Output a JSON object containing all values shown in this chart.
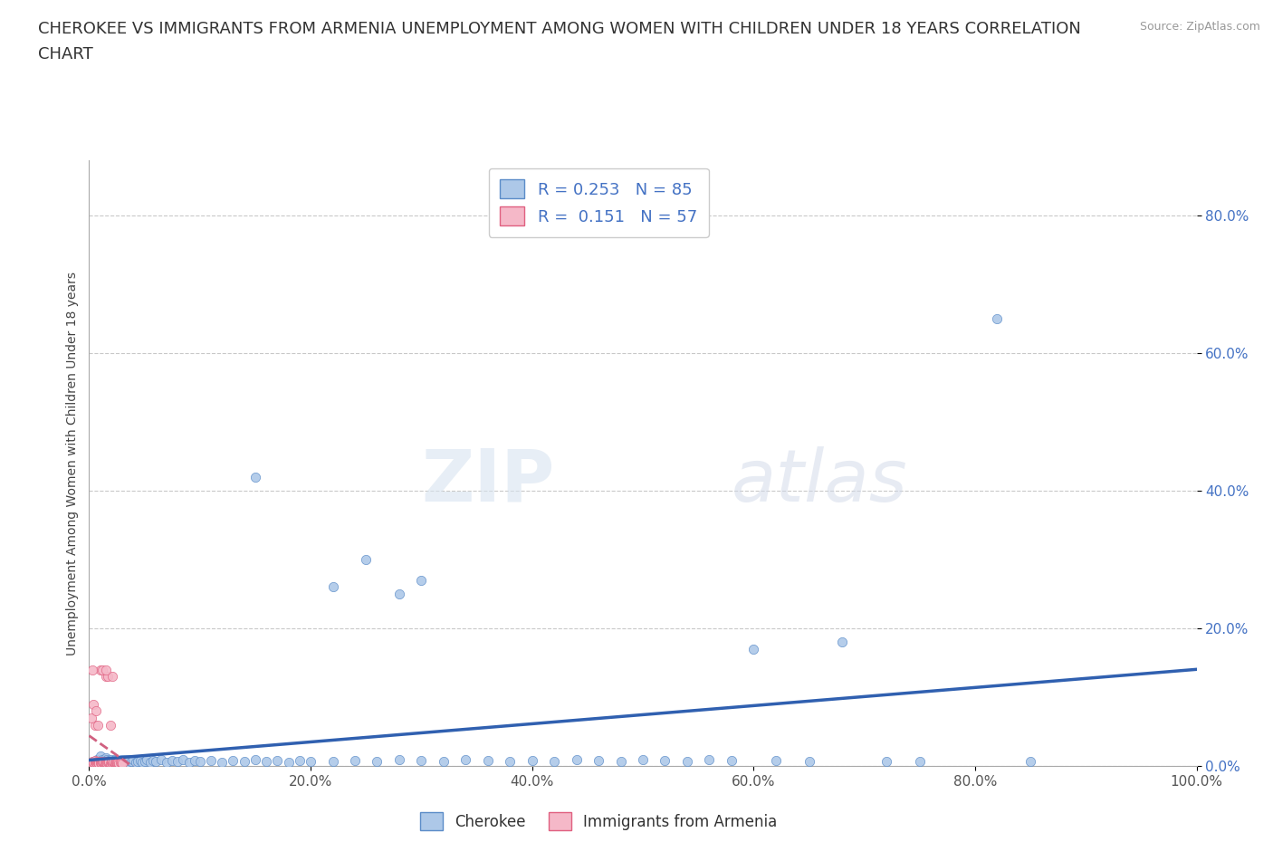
{
  "title_line1": "CHEROKEE VS IMMIGRANTS FROM ARMENIA UNEMPLOYMENT AMONG WOMEN WITH CHILDREN UNDER 18 YEARS CORRELATION",
  "title_line2": "CHART",
  "source_text": "Source: ZipAtlas.com",
  "ylabel": "Unemployment Among Women with Children Under 18 years",
  "xlim": [
    0.0,
    1.0
  ],
  "ylim": [
    0.0,
    0.88
  ],
  "xticks": [
    0.0,
    0.2,
    0.4,
    0.6,
    0.8,
    1.0
  ],
  "xtick_labels": [
    "0.0%",
    "20.0%",
    "40.0%",
    "60.0%",
    "80.0%",
    "100.0%"
  ],
  "yticks": [
    0.0,
    0.2,
    0.4,
    0.6,
    0.8
  ],
  "ytick_labels": [
    "0.0%",
    "20.0%",
    "40.0%",
    "60.0%",
    "80.0%"
  ],
  "cherokee_color": "#adc8e8",
  "armenia_color": "#f5b8c8",
  "cherokee_edge_color": "#5b8cc8",
  "armenia_edge_color": "#e06080",
  "cherokee_line_color": "#3060b0",
  "armenia_line_color": "#d06080",
  "legend_label1": "Cherokee",
  "legend_label2": "Immigrants from Armenia",
  "watermark_zip": "ZIP",
  "watermark_atlas": "atlas",
  "title_fontsize": 13,
  "axis_label_fontsize": 10,
  "tick_fontsize": 11,
  "cherokee_scatter": [
    [
      0.005,
      0.005
    ],
    [
      0.007,
      0.01
    ],
    [
      0.008,
      0.007
    ],
    [
      0.01,
      0.008
    ],
    [
      0.01,
      0.015
    ],
    [
      0.012,
      0.01
    ],
    [
      0.013,
      0.007
    ],
    [
      0.015,
      0.012
    ],
    [
      0.015,
      0.005
    ],
    [
      0.016,
      0.009
    ],
    [
      0.017,
      0.006
    ],
    [
      0.018,
      0.008
    ],
    [
      0.02,
      0.01
    ],
    [
      0.02,
      0.004
    ],
    [
      0.022,
      0.007
    ],
    [
      0.023,
      0.009
    ],
    [
      0.025,
      0.006
    ],
    [
      0.026,
      0.008
    ],
    [
      0.028,
      0.006
    ],
    [
      0.029,
      0.01
    ],
    [
      0.03,
      0.007
    ],
    [
      0.032,
      0.009
    ],
    [
      0.034,
      0.006
    ],
    [
      0.035,
      0.008
    ],
    [
      0.036,
      0.01
    ],
    [
      0.038,
      0.007
    ],
    [
      0.04,
      0.009
    ],
    [
      0.042,
      0.006
    ],
    [
      0.044,
      0.007
    ],
    [
      0.046,
      0.008
    ],
    [
      0.048,
      0.006
    ],
    [
      0.05,
      0.007
    ],
    [
      0.052,
      0.009
    ],
    [
      0.055,
      0.006
    ],
    [
      0.058,
      0.008
    ],
    [
      0.06,
      0.007
    ],
    [
      0.065,
      0.009
    ],
    [
      0.07,
      0.006
    ],
    [
      0.075,
      0.008
    ],
    [
      0.08,
      0.007
    ],
    [
      0.085,
      0.009
    ],
    [
      0.09,
      0.006
    ],
    [
      0.095,
      0.008
    ],
    [
      0.1,
      0.007
    ],
    [
      0.11,
      0.008
    ],
    [
      0.12,
      0.006
    ],
    [
      0.13,
      0.008
    ],
    [
      0.14,
      0.007
    ],
    [
      0.15,
      0.009
    ],
    [
      0.16,
      0.007
    ],
    [
      0.17,
      0.008
    ],
    [
      0.18,
      0.006
    ],
    [
      0.19,
      0.008
    ],
    [
      0.2,
      0.007
    ],
    [
      0.15,
      0.42
    ],
    [
      0.22,
      0.26
    ],
    [
      0.25,
      0.3
    ],
    [
      0.28,
      0.25
    ],
    [
      0.3,
      0.27
    ],
    [
      0.22,
      0.007
    ],
    [
      0.24,
      0.008
    ],
    [
      0.26,
      0.007
    ],
    [
      0.28,
      0.009
    ],
    [
      0.3,
      0.008
    ],
    [
      0.32,
      0.007
    ],
    [
      0.34,
      0.009
    ],
    [
      0.36,
      0.008
    ],
    [
      0.38,
      0.007
    ],
    [
      0.4,
      0.008
    ],
    [
      0.42,
      0.007
    ],
    [
      0.44,
      0.009
    ],
    [
      0.46,
      0.008
    ],
    [
      0.48,
      0.007
    ],
    [
      0.5,
      0.009
    ],
    [
      0.52,
      0.008
    ],
    [
      0.54,
      0.007
    ],
    [
      0.56,
      0.009
    ],
    [
      0.58,
      0.008
    ],
    [
      0.6,
      0.17
    ],
    [
      0.62,
      0.008
    ],
    [
      0.65,
      0.007
    ],
    [
      0.68,
      0.18
    ],
    [
      0.72,
      0.007
    ],
    [
      0.75,
      0.007
    ],
    [
      0.82,
      0.65
    ],
    [
      0.85,
      0.007
    ]
  ],
  "armenia_scatter": [
    [
      0.002,
      0.005
    ],
    [
      0.003,
      0.007
    ],
    [
      0.004,
      0.005
    ],
    [
      0.005,
      0.008
    ],
    [
      0.005,
      0.004
    ],
    [
      0.006,
      0.006
    ],
    [
      0.006,
      0.005
    ],
    [
      0.007,
      0.007
    ],
    [
      0.007,
      0.004
    ],
    [
      0.008,
      0.006
    ],
    [
      0.008,
      0.005
    ],
    [
      0.009,
      0.007
    ],
    [
      0.009,
      0.004
    ],
    [
      0.01,
      0.006
    ],
    [
      0.01,
      0.005
    ],
    [
      0.011,
      0.007
    ],
    [
      0.011,
      0.004
    ],
    [
      0.012,
      0.006
    ],
    [
      0.013,
      0.005
    ],
    [
      0.013,
      0.007
    ],
    [
      0.014,
      0.004
    ],
    [
      0.014,
      0.006
    ],
    [
      0.015,
      0.005
    ],
    [
      0.015,
      0.13
    ],
    [
      0.016,
      0.007
    ],
    [
      0.016,
      0.004
    ],
    [
      0.017,
      0.006
    ],
    [
      0.017,
      0.13
    ],
    [
      0.018,
      0.005
    ],
    [
      0.018,
      0.007
    ],
    [
      0.019,
      0.004
    ],
    [
      0.019,
      0.06
    ],
    [
      0.02,
      0.005
    ],
    [
      0.02,
      0.007
    ],
    [
      0.021,
      0.004
    ],
    [
      0.021,
      0.13
    ],
    [
      0.022,
      0.005
    ],
    [
      0.022,
      0.007
    ],
    [
      0.023,
      0.004
    ],
    [
      0.023,
      0.006
    ],
    [
      0.024,
      0.005
    ],
    [
      0.025,
      0.004
    ],
    [
      0.025,
      0.006
    ],
    [
      0.026,
      0.005
    ],
    [
      0.027,
      0.004
    ],
    [
      0.028,
      0.006
    ],
    [
      0.029,
      0.005
    ],
    [
      0.03,
      0.004
    ],
    [
      0.01,
      0.14
    ],
    [
      0.012,
      0.14
    ],
    [
      0.015,
      0.14
    ],
    [
      0.005,
      0.06
    ],
    [
      0.008,
      0.06
    ],
    [
      0.003,
      0.14
    ],
    [
      0.004,
      0.09
    ],
    [
      0.002,
      0.07
    ],
    [
      0.006,
      0.08
    ]
  ]
}
